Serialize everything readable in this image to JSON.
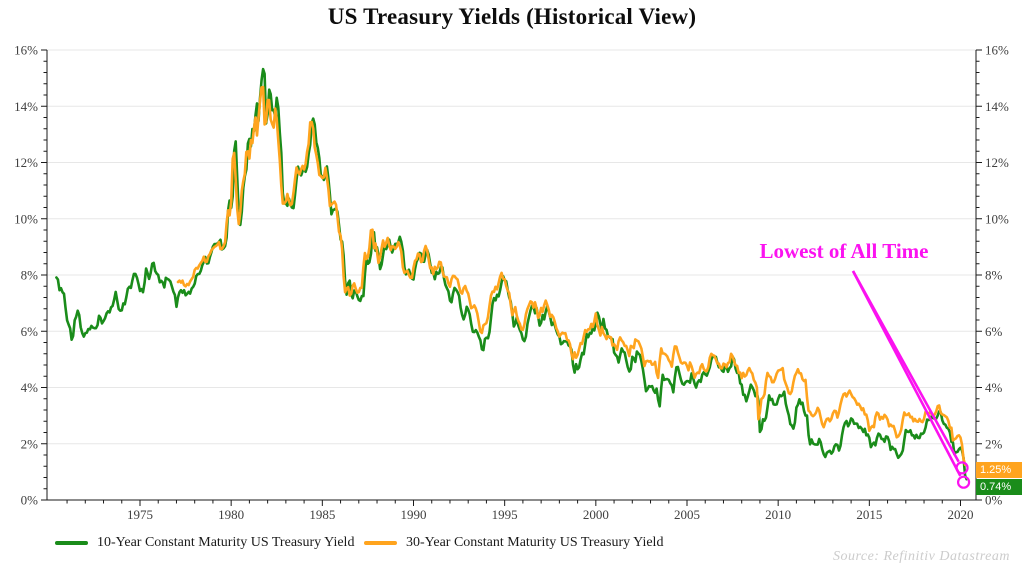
{
  "title": "US Treasury Yields (Historical View)",
  "source": "Source: Refinitiv Datastream",
  "annotation": {
    "text": "Lowest of All Time",
    "color": "#fb12f0"
  },
  "colors": {
    "series_10y": "#1a8c1a",
    "series_30y": "#ffa41e",
    "annotation": "#fb12f0",
    "grid": "#e7e7e7",
    "axis": "#1a1a1a",
    "tick_label": "#404040",
    "badge_text": "#ffffff"
  },
  "chart_data": {
    "type": "line",
    "title": "US Treasury Yields (Historical View)",
    "xlabel": "",
    "ylabel": "",
    "ylim": [
      0,
      16
    ],
    "xlim": [
      1969.9,
      2020.85
    ],
    "grid": "horizontal",
    "legend_position": "bottom",
    "y_tick_labels": [
      "0%",
      "2%",
      "4%",
      "6%",
      "8%",
      "10%",
      "12%",
      "14%",
      "16%"
    ],
    "y_tick_values": [
      0,
      2,
      4,
      6,
      8,
      10,
      12,
      14,
      16
    ],
    "x_tick_years": [
      1975,
      1980,
      1985,
      1990,
      1995,
      2000,
      2005,
      2010,
      2015,
      2020
    ],
    "series": [
      {
        "name": "10-Year Constant Maturity US Treasury Yield",
        "color": "#1a8c1a",
        "start_year": 1970.417,
        "points_per_year": 12,
        "end_label": "0.74%",
        "values": [
          7.91,
          7.84,
          7.46,
          7.53,
          7.39,
          7.33,
          6.84,
          6.39,
          6.24,
          6.11,
          5.7,
          5.83,
          6.39,
          6.52,
          6.73,
          6.58,
          6.14,
          5.93,
          5.81,
          5.93,
          5.95,
          6.08,
          6.07,
          6.19,
          6.13,
          6.11,
          6.11,
          6.21,
          6.55,
          6.48,
          6.28,
          6.36,
          6.46,
          6.64,
          6.71,
          6.67,
          6.85,
          6.9,
          7.13,
          7.4,
          7.09,
          6.79,
          6.73,
          6.74,
          6.99,
          6.96,
          7.21,
          7.51,
          7.58,
          7.54,
          7.81,
          8.04,
          8.04,
          7.9,
          7.68,
          7.43,
          7.5,
          7.39,
          7.73,
          8.23,
          8.06,
          7.86,
          8.06,
          8.4,
          8.43,
          8.14,
          8.05,
          8.0,
          7.74,
          7.79,
          7.73,
          7.56,
          7.9,
          7.86,
          7.83,
          7.77,
          7.59,
          7.41,
          7.29,
          6.87,
          7.21,
          7.39,
          7.46,
          7.37,
          7.46,
          7.28,
          7.33,
          7.4,
          7.34,
          7.52,
          7.58,
          7.69,
          7.96,
          8.03,
          8.04,
          8.15,
          8.35,
          8.46,
          8.64,
          8.41,
          8.42,
          8.64,
          8.81,
          9.01,
          9.1,
          9.1,
          9.12,
          9.18,
          9.25,
          8.91,
          8.95,
          9.03,
          9.33,
          10.3,
          10.65,
          10.39,
          10.8,
          12.41,
          12.75,
          11.47,
          10.18,
          9.78,
          10.25,
          11.1,
          11.51,
          11.75,
          12.68,
          12.84,
          12.57,
          13.19,
          13.12,
          13.68,
          14.1,
          13.47,
          14.28,
          14.94,
          15.32,
          15.15,
          13.39,
          13.72,
          14.59,
          14.43,
          13.86,
          13.87,
          13.62,
          14.3,
          13.95,
          13.06,
          12.34,
          10.91,
          10.55,
          10.54,
          10.46,
          10.72,
          10.51,
          10.4,
          10.38,
          10.85,
          11.38,
          11.85,
          11.65,
          11.54,
          11.69,
          11.83,
          11.67,
          11.84,
          12.32,
          12.63,
          13.41,
          13.56,
          13.36,
          12.72,
          12.52,
          12.16,
          11.57,
          11.5,
          11.38,
          11.51,
          11.86,
          11.43,
          10.85,
          10.16,
          10.31,
          10.33,
          10.37,
          10.24,
          9.78,
          9.26,
          9.19,
          8.7,
          7.78,
          7.3,
          7.71,
          7.8,
          7.3,
          7.17,
          7.45,
          7.43,
          7.25,
          7.11,
          7.08,
          7.25,
          7.25,
          8.02,
          8.61,
          8.4,
          8.45,
          8.76,
          9.42,
          9.52,
          8.86,
          8.99,
          8.67,
          8.21,
          8.37,
          8.72,
          9.09,
          8.92,
          9.06,
          9.26,
          8.98,
          8.8,
          8.96,
          9.11,
          9.09,
          9.17,
          9.36,
          9.18,
          8.86,
          8.28,
          8.02,
          8.11,
          8.19,
          8.01,
          7.87,
          7.84,
          8.21,
          8.47,
          8.59,
          8.79,
          8.76,
          8.48,
          8.47,
          8.75,
          8.89,
          8.72,
          8.39,
          8.08,
          8.09,
          7.85,
          8.11,
          8.04,
          8.07,
          8.28,
          8.27,
          7.9,
          7.65,
          7.53,
          7.42,
          7.09,
          7.03,
          7.34,
          7.54,
          7.48,
          7.39,
          7.26,
          6.84,
          6.59,
          6.42,
          6.59,
          6.87,
          6.77,
          6.6,
          6.26,
          5.98,
          5.97,
          6.04,
          5.96,
          5.81,
          5.68,
          5.36,
          5.33,
          5.72,
          5.77,
          5.75,
          5.97,
          6.48,
          6.97,
          7.18,
          7.1,
          7.3,
          7.24,
          7.46,
          7.74,
          7.96,
          7.81,
          7.78,
          7.47,
          7.2,
          7.06,
          6.63,
          6.17,
          6.28,
          6.49,
          6.2,
          6.04,
          5.93,
          5.71,
          5.65,
          5.81,
          6.27,
          6.51,
          6.74,
          6.91,
          6.87,
          6.64,
          6.83,
          6.53,
          6.2,
          6.3,
          6.58,
          6.42,
          6.69,
          6.89,
          6.71,
          6.49,
          6.22,
          6.3,
          6.21,
          6.03,
          5.88,
          5.81,
          5.54,
          5.57,
          5.65,
          5.64,
          5.65,
          5.5,
          5.46,
          5.34,
          4.81,
          4.53,
          4.83,
          4.65,
          4.72,
          5.0,
          5.23,
          5.18,
          5.54,
          5.9,
          5.79,
          5.94,
          5.92,
          6.11,
          6.03,
          6.28,
          6.66,
          6.52,
          6.26,
          5.99,
          6.44,
          6.1,
          6.05,
          5.83,
          5.8,
          5.74,
          5.72,
          5.24,
          5.16,
          5.1,
          4.89,
          5.14,
          5.39,
          5.28,
          5.24,
          4.97,
          4.73,
          4.57,
          4.65,
          5.09,
          5.04,
          4.91,
          5.28,
          5.21,
          5.16,
          4.93,
          4.65,
          4.26,
          3.87,
          3.94,
          4.05,
          4.03,
          4.05,
          3.9,
          3.81,
          3.96,
          3.57,
          3.33,
          3.98,
          4.45,
          4.27,
          4.29,
          4.3,
          4.27,
          4.15,
          4.08,
          3.83,
          4.35,
          4.72,
          4.73,
          4.5,
          4.28,
          4.13,
          4.1,
          4.19,
          4.23,
          4.22,
          4.17,
          4.5,
          4.34,
          4.14,
          4.0,
          4.18,
          4.26,
          4.2,
          4.46,
          4.54,
          4.47,
          4.42,
          4.57,
          4.72,
          4.99,
          5.11,
          5.11,
          5.09,
          4.88,
          4.72,
          4.73,
          4.6,
          4.56,
          4.76,
          4.72,
          4.56,
          4.69,
          4.75,
          5.1,
          5.0,
          4.67,
          4.52,
          4.53,
          4.15,
          4.1,
          3.74,
          3.74,
          3.51,
          3.68,
          3.88,
          4.1,
          4.01,
          3.89,
          3.69,
          3.81,
          3.53,
          2.42,
          2.52,
          2.87,
          2.82,
          2.93,
          3.29,
          3.72,
          3.56,
          3.59,
          3.4,
          3.39,
          3.4,
          3.59,
          3.73,
          3.69,
          3.73,
          3.85,
          3.42,
          3.2,
          3.01,
          2.7,
          2.65,
          2.54,
          2.76,
          3.29,
          3.39,
          3.58,
          3.41,
          3.46,
          3.17,
          3.0,
          3.0,
          2.3,
          1.98,
          2.15,
          2.01,
          1.98,
          1.97,
          1.97,
          2.17,
          2.05,
          1.8,
          1.62,
          1.53,
          1.68,
          1.72,
          1.75,
          1.65,
          1.72,
          1.91,
          1.98,
          1.96,
          1.76,
          1.93,
          2.3,
          2.58,
          2.74,
          2.81,
          2.62,
          2.72,
          2.9,
          2.86,
          2.71,
          2.72,
          2.71,
          2.56,
          2.6,
          2.54,
          2.42,
          2.53,
          2.3,
          2.33,
          2.21,
          1.88,
          1.98,
          2.04,
          1.94,
          2.2,
          2.36,
          2.32,
          2.17,
          2.17,
          2.07,
          2.26,
          2.24,
          2.09,
          1.78,
          1.89,
          1.81,
          1.81,
          1.64,
          1.5,
          1.56,
          1.63,
          1.76,
          2.14,
          2.49,
          2.43,
          2.42,
          2.48,
          2.3,
          2.3,
          2.19,
          2.32,
          2.21,
          2.2,
          2.36,
          2.35,
          2.4,
          2.58,
          2.86,
          2.84,
          2.87,
          2.98,
          2.91,
          2.89,
          2.89,
          3.0,
          3.15,
          3.12,
          2.83,
          2.71,
          2.68,
          2.57,
          2.53,
          2.4,
          2.07,
          2.06,
          1.63,
          1.7,
          1.71,
          1.81,
          1.86,
          1.76,
          1.5,
          0.87,
          0.74
        ]
      },
      {
        "name": "30-Year Constant Maturity US Treasury Yield",
        "color": "#ffa41e",
        "start_year": 1977.083,
        "points_per_year": 12,
        "end_label": "1.25%",
        "values": [
          7.75,
          7.8,
          7.73,
          7.8,
          7.64,
          7.6,
          7.68,
          7.64,
          7.77,
          7.85,
          7.94,
          8.18,
          8.25,
          8.23,
          8.34,
          8.43,
          8.5,
          8.65,
          8.47,
          8.47,
          8.67,
          8.75,
          8.88,
          8.94,
          9.0,
          9.03,
          9.08,
          9.17,
          8.92,
          8.93,
          9.03,
          9.17,
          9.85,
          10.3,
          10.12,
          10.6,
          12.13,
          12.34,
          11.4,
          10.36,
          9.81,
          10.24,
          11.0,
          11.34,
          11.59,
          12.37,
          12.4,
          12.14,
          12.8,
          12.69,
          13.2,
          13.6,
          12.96,
          13.59,
          14.17,
          14.67,
          14.68,
          13.35,
          13.45,
          14.22,
          14.22,
          13.53,
          13.37,
          13.24,
          13.92,
          13.55,
          12.77,
          12.07,
          11.17,
          10.54,
          10.54,
          10.63,
          10.88,
          10.63,
          10.48,
          10.53,
          10.93,
          11.4,
          11.82,
          11.65,
          11.58,
          11.75,
          11.88,
          11.75,
          11.95,
          12.38,
          12.65,
          13.43,
          13.44,
          13.21,
          12.54,
          12.29,
          11.98,
          11.56,
          11.52,
          11.45,
          11.47,
          11.81,
          11.47,
          11.05,
          10.45,
          10.5,
          10.56,
          10.61,
          10.5,
          10.06,
          9.54,
          9.4,
          8.93,
          7.96,
          7.39,
          7.52,
          7.57,
          7.27,
          7.33,
          7.62,
          7.7,
          7.52,
          7.37,
          7.39,
          7.54,
          7.55,
          8.25,
          8.78,
          8.57,
          8.64,
          8.97,
          9.59,
          9.61,
          8.95,
          9.12,
          8.83,
          8.43,
          8.63,
          8.95,
          9.23,
          9.0,
          9.14,
          9.32,
          9.06,
          8.89,
          9.02,
          9.01,
          8.93,
          9.01,
          9.17,
          9.03,
          8.83,
          8.27,
          8.08,
          8.12,
          8.15,
          8.0,
          7.9,
          7.9,
          8.26,
          8.5,
          8.56,
          8.76,
          8.73,
          8.46,
          8.5,
          8.86,
          9.03,
          8.86,
          8.54,
          8.24,
          8.27,
          8.03,
          8.29,
          8.21,
          8.27,
          8.47,
          8.45,
          8.14,
          7.95,
          7.93,
          7.92,
          7.7,
          7.58,
          7.85,
          7.97,
          7.96,
          7.89,
          7.84,
          7.6,
          7.39,
          7.34,
          7.53,
          7.61,
          7.44,
          7.34,
          7.09,
          6.82,
          6.85,
          6.92,
          6.81,
          6.63,
          6.32,
          6.0,
          5.94,
          6.21,
          6.25,
          6.29,
          6.49,
          6.91,
          7.27,
          7.41,
          7.4,
          7.58,
          7.49,
          7.71,
          7.94,
          8.08,
          7.87,
          7.85,
          7.61,
          7.45,
          7.36,
          6.95,
          6.57,
          6.72,
          6.86,
          6.55,
          6.37,
          6.26,
          6.06,
          6.05,
          6.24,
          6.6,
          6.79,
          6.93,
          7.06,
          7.03,
          6.84,
          7.03,
          6.81,
          6.48,
          6.55,
          6.83,
          6.69,
          6.93,
          7.09,
          6.94,
          6.77,
          6.51,
          6.58,
          6.5,
          6.33,
          6.11,
          5.99,
          5.81,
          5.89,
          5.95,
          5.92,
          5.93,
          5.7,
          5.68,
          5.54,
          5.2,
          5.01,
          5.25,
          5.06,
          5.16,
          5.37,
          5.58,
          5.55,
          5.81,
          6.04,
          5.98,
          6.07,
          6.07,
          6.26,
          6.15,
          6.35,
          6.63,
          6.23,
          6.05,
          5.85,
          6.15,
          5.93,
          5.85,
          5.72,
          5.83,
          5.8,
          5.78,
          5.49,
          5.54,
          5.45,
          5.34,
          5.65,
          5.78,
          5.67,
          5.61,
          5.48,
          5.48,
          5.32,
          5.12,
          5.48,
          5.45,
          5.4,
          5.71,
          5.67,
          5.64,
          5.52,
          5.38,
          5.08,
          4.76,
          4.93,
          4.95,
          4.92,
          4.94,
          4.81,
          4.82,
          4.91,
          4.52,
          4.34,
          4.92,
          5.39,
          5.21,
          5.21,
          5.17,
          5.11,
          4.97,
          4.89,
          4.74,
          5.16,
          5.46,
          5.45,
          5.24,
          5.07,
          4.89,
          4.85,
          4.89,
          4.88,
          4.77,
          4.61,
          4.89,
          4.75,
          4.56,
          4.35,
          4.48,
          4.53,
          4.51,
          4.74,
          4.83,
          4.66,
          4.59,
          4.58,
          4.73,
          5.06,
          5.2,
          5.15,
          5.13,
          5.0,
          4.85,
          4.85,
          4.69,
          4.68,
          4.85,
          4.82,
          4.72,
          4.87,
          4.9,
          5.2,
          5.11,
          4.93,
          4.79,
          4.77,
          4.52,
          4.53,
          4.33,
          4.52,
          4.39,
          4.44,
          4.6,
          4.69,
          4.57,
          4.5,
          4.27,
          4.17,
          4.0,
          2.87,
          3.13,
          3.59,
          3.64,
          3.76,
          4.23,
          4.52,
          4.41,
          4.37,
          4.19,
          4.19,
          4.31,
          4.49,
          4.6,
          4.62,
          4.64,
          4.69,
          4.29,
          4.13,
          3.99,
          3.8,
          3.77,
          3.87,
          4.19,
          4.42,
          4.52,
          4.65,
          4.51,
          4.5,
          4.29,
          4.23,
          4.27,
          3.65,
          3.18,
          3.13,
          3.02,
          2.98,
          3.03,
          3.11,
          3.28,
          3.18,
          2.93,
          2.7,
          2.59,
          2.77,
          2.88,
          2.9,
          2.8,
          2.88,
          3.08,
          3.17,
          3.16,
          2.93,
          3.11,
          3.4,
          3.61,
          3.76,
          3.79,
          3.68,
          3.8,
          3.89,
          3.77,
          3.66,
          3.62,
          3.52,
          3.39,
          3.42,
          3.33,
          3.2,
          3.26,
          3.04,
          3.04,
          2.83,
          2.46,
          2.57,
          2.63,
          2.59,
          2.96,
          3.11,
          3.07,
          2.86,
          2.95,
          2.89,
          3.03,
          2.97,
          2.86,
          2.62,
          2.68,
          2.62,
          2.63,
          2.45,
          2.23,
          2.26,
          2.35,
          2.5,
          2.86,
          3.11,
          3.02,
          3.03,
          3.08,
          2.94,
          2.96,
          2.8,
          2.88,
          2.8,
          2.78,
          2.88,
          2.8,
          2.77,
          2.88,
          3.13,
          3.09,
          3.07,
          3.13,
          3.05,
          3.01,
          3.04,
          3.15,
          3.34,
          3.36,
          3.1,
          3.04,
          3.02,
          2.98,
          2.94,
          2.82,
          2.57,
          2.57,
          2.12,
          2.16,
          2.19,
          2.28,
          2.3,
          2.22,
          1.97,
          1.46,
          1.25
        ]
      }
    ],
    "annotations": [
      {
        "text": "Lowest of All Time",
        "points_to": [
          "30-Year series end = 1.25%",
          "10-Year series end = 0.74%"
        ]
      }
    ]
  }
}
